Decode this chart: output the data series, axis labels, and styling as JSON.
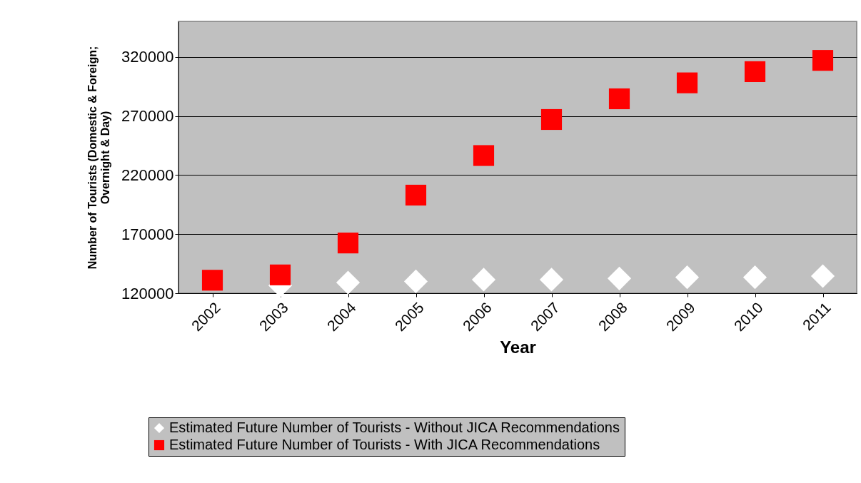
{
  "chart_data": {
    "type": "scatter",
    "xlabel": "Year",
    "ylabel": "Number of Tourists (Domestic & Foreign; Overnight & Day)",
    "categories": [
      "2002",
      "2003",
      "2004",
      "2005",
      "2006",
      "2007",
      "2008",
      "2009",
      "2010",
      "2011"
    ],
    "series": [
      {
        "name": "Estimated Future Number of Tourists - Without JICA Recommendations",
        "color": "#ffffff",
        "marker": "diamond",
        "values": [
          null,
          126500,
          129000,
          130000,
          131500,
          131500,
          132500,
          133500,
          133500,
          134500
        ]
      },
      {
        "name": "Estimated Future Number of Tourists - With JICA Recommendations",
        "color": "#ff0000",
        "marker": "square",
        "values": [
          131000,
          135500,
          162500,
          203000,
          236500,
          267000,
          284500,
          298000,
          307500,
          317000
        ]
      }
    ],
    "ylim": [
      120000,
      350000
    ],
    "yticks": [
      120000,
      170000,
      220000,
      270000,
      320000
    ],
    "grid": "y",
    "legend": "bottom"
  }
}
